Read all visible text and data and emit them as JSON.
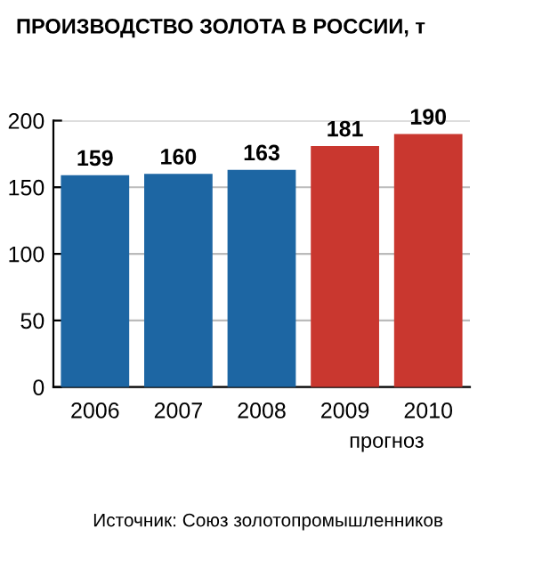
{
  "chart_data": {
    "type": "bar",
    "title": "ПРОИЗВОДСТВО ЗОЛОТА В РОССИИ, т",
    "categories": [
      "2006",
      "2007",
      "2008",
      "2009",
      "2010"
    ],
    "values": [
      159,
      160,
      163,
      181,
      190
    ],
    "colors": [
      "#1d66a3",
      "#1d66a3",
      "#1d66a3",
      "#c9372f",
      "#c9372f"
    ],
    "ylim": [
      0,
      200
    ],
    "yticks": [
      0,
      50,
      100,
      150,
      200
    ],
    "grid": "y",
    "data_labels": true,
    "annotations": [
      "прогноз",
      "Источник: Союз золотопромышленников"
    ]
  }
}
